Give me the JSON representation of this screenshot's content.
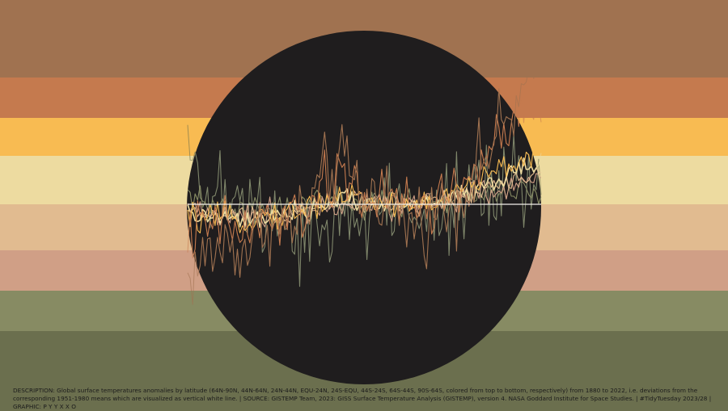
{
  "colors": {
    "background_band_order": [
      "#a07250",
      "#c57a4e",
      "#f8bb52",
      "#eddba0",
      "#e1bb90",
      "#d09f86",
      "#878b63",
      "#6b6f4e"
    ],
    "disc": "#1f1d1e",
    "baseline": "#f2f0ea"
  },
  "caption": {
    "text": "DESCRIPTION: Global surface temperatures anomalies by latitude (64N-90N, 44N-64N, 24N-44N, EQU-24N, 24S-EQU, 44S-24S, 64S-44S, 90S-64S, colored from top to bottom, respectively) from 1880 to 2022, i.e. deviations from the corresponding 1951-1980 means which are visualized as vertical white line. | SOURCE: GISTEMP Team, 2023: GISS Surface Temperature Analysis (GISTEMP), version 4. NASA Goddard Institute for Space Studies. | #TidyTuesday 2023/28 | GRAPHIC: P Y Y X X O"
  },
  "chart_data": {
    "type": "line",
    "x_range": [
      1880,
      2022
    ],
    "ylim": [
      -2.2,
      3.3
    ],
    "baseline": 0,
    "grid": false,
    "legend": "none",
    "series": [
      {
        "zone": "64N-90N",
        "color": "#a07250",
        "anchors": [
          -1.5,
          -1.0,
          -0.8,
          -0.9,
          -0.3,
          -0.5,
          -0.2,
          0.6,
          0.8,
          0.1,
          0.3,
          -0.4,
          -0.3,
          -0.1,
          0.2,
          0.9,
          1.5,
          2.1,
          2.8
        ],
        "amplitude": 0.55
      },
      {
        "zone": "44N-64N",
        "color": "#c57a4e",
        "anchors": [
          -0.6,
          -0.5,
          -0.4,
          -0.6,
          -0.3,
          -0.4,
          -0.1,
          0.3,
          0.6,
          0.2,
          0.0,
          0.0,
          -0.1,
          0.1,
          0.4,
          0.9,
          1.3,
          1.7,
          2.0
        ],
        "amplitude": 0.45
      },
      {
        "zone": "24N-44N",
        "color": "#f8bb52",
        "anchors": [
          -0.3,
          -0.3,
          -0.3,
          -0.3,
          -0.2,
          -0.2,
          -0.1,
          0.1,
          0.2,
          0.1,
          0.0,
          0.0,
          0.0,
          0.1,
          0.3,
          0.5,
          0.7,
          0.9,
          1.2
        ],
        "amplitude": 0.2
      },
      {
        "zone": "EQU-24N",
        "color": "#eddba0",
        "anchors": [
          -0.2,
          -0.25,
          -0.3,
          -0.35,
          -0.3,
          -0.25,
          -0.15,
          0.0,
          0.1,
          0.1,
          0.0,
          0.0,
          0.0,
          0.05,
          0.2,
          0.35,
          0.5,
          0.7,
          0.9
        ],
        "amplitude": 0.15
      },
      {
        "zone": "24S-EQU",
        "color": "#e1bb90",
        "anchors": [
          -0.15,
          -0.2,
          -0.25,
          -0.3,
          -0.25,
          -0.2,
          -0.1,
          0.0,
          0.05,
          0.05,
          0.0,
          0.0,
          0.05,
          0.1,
          0.2,
          0.35,
          0.45,
          0.55,
          0.7
        ],
        "amplitude": 0.15
      },
      {
        "zone": "44S-24S",
        "color": "#d09f86",
        "anchors": [
          -0.1,
          -0.15,
          -0.2,
          -0.2,
          -0.2,
          -0.15,
          -0.1,
          0.0,
          0.05,
          0.05,
          0.0,
          0.0,
          0.05,
          0.1,
          0.15,
          0.25,
          0.35,
          0.45,
          0.6
        ],
        "amplitude": 0.2
      },
      {
        "zone": "64S-44S",
        "color": "#878b63",
        "anchors": [
          0.1,
          0.0,
          -0.1,
          -0.15,
          -0.1,
          -0.05,
          0.0,
          0.05,
          0.05,
          0.0,
          0.0,
          0.0,
          0.05,
          0.05,
          0.1,
          0.15,
          0.2,
          0.25,
          0.2
        ],
        "amplitude": 0.2
      },
      {
        "zone": "90S-64S",
        "color": "#6b6f4e",
        "anchors": [
          0.6,
          0.3,
          0.2,
          -0.1,
          -0.4,
          -0.7,
          -0.5,
          -0.6,
          -0.4,
          -0.2,
          -0.1,
          0.1,
          0.0,
          -0.1,
          0.2,
          0.1,
          0.3,
          0.4,
          0.3
        ],
        "amplitude": 0.75
      }
    ]
  }
}
